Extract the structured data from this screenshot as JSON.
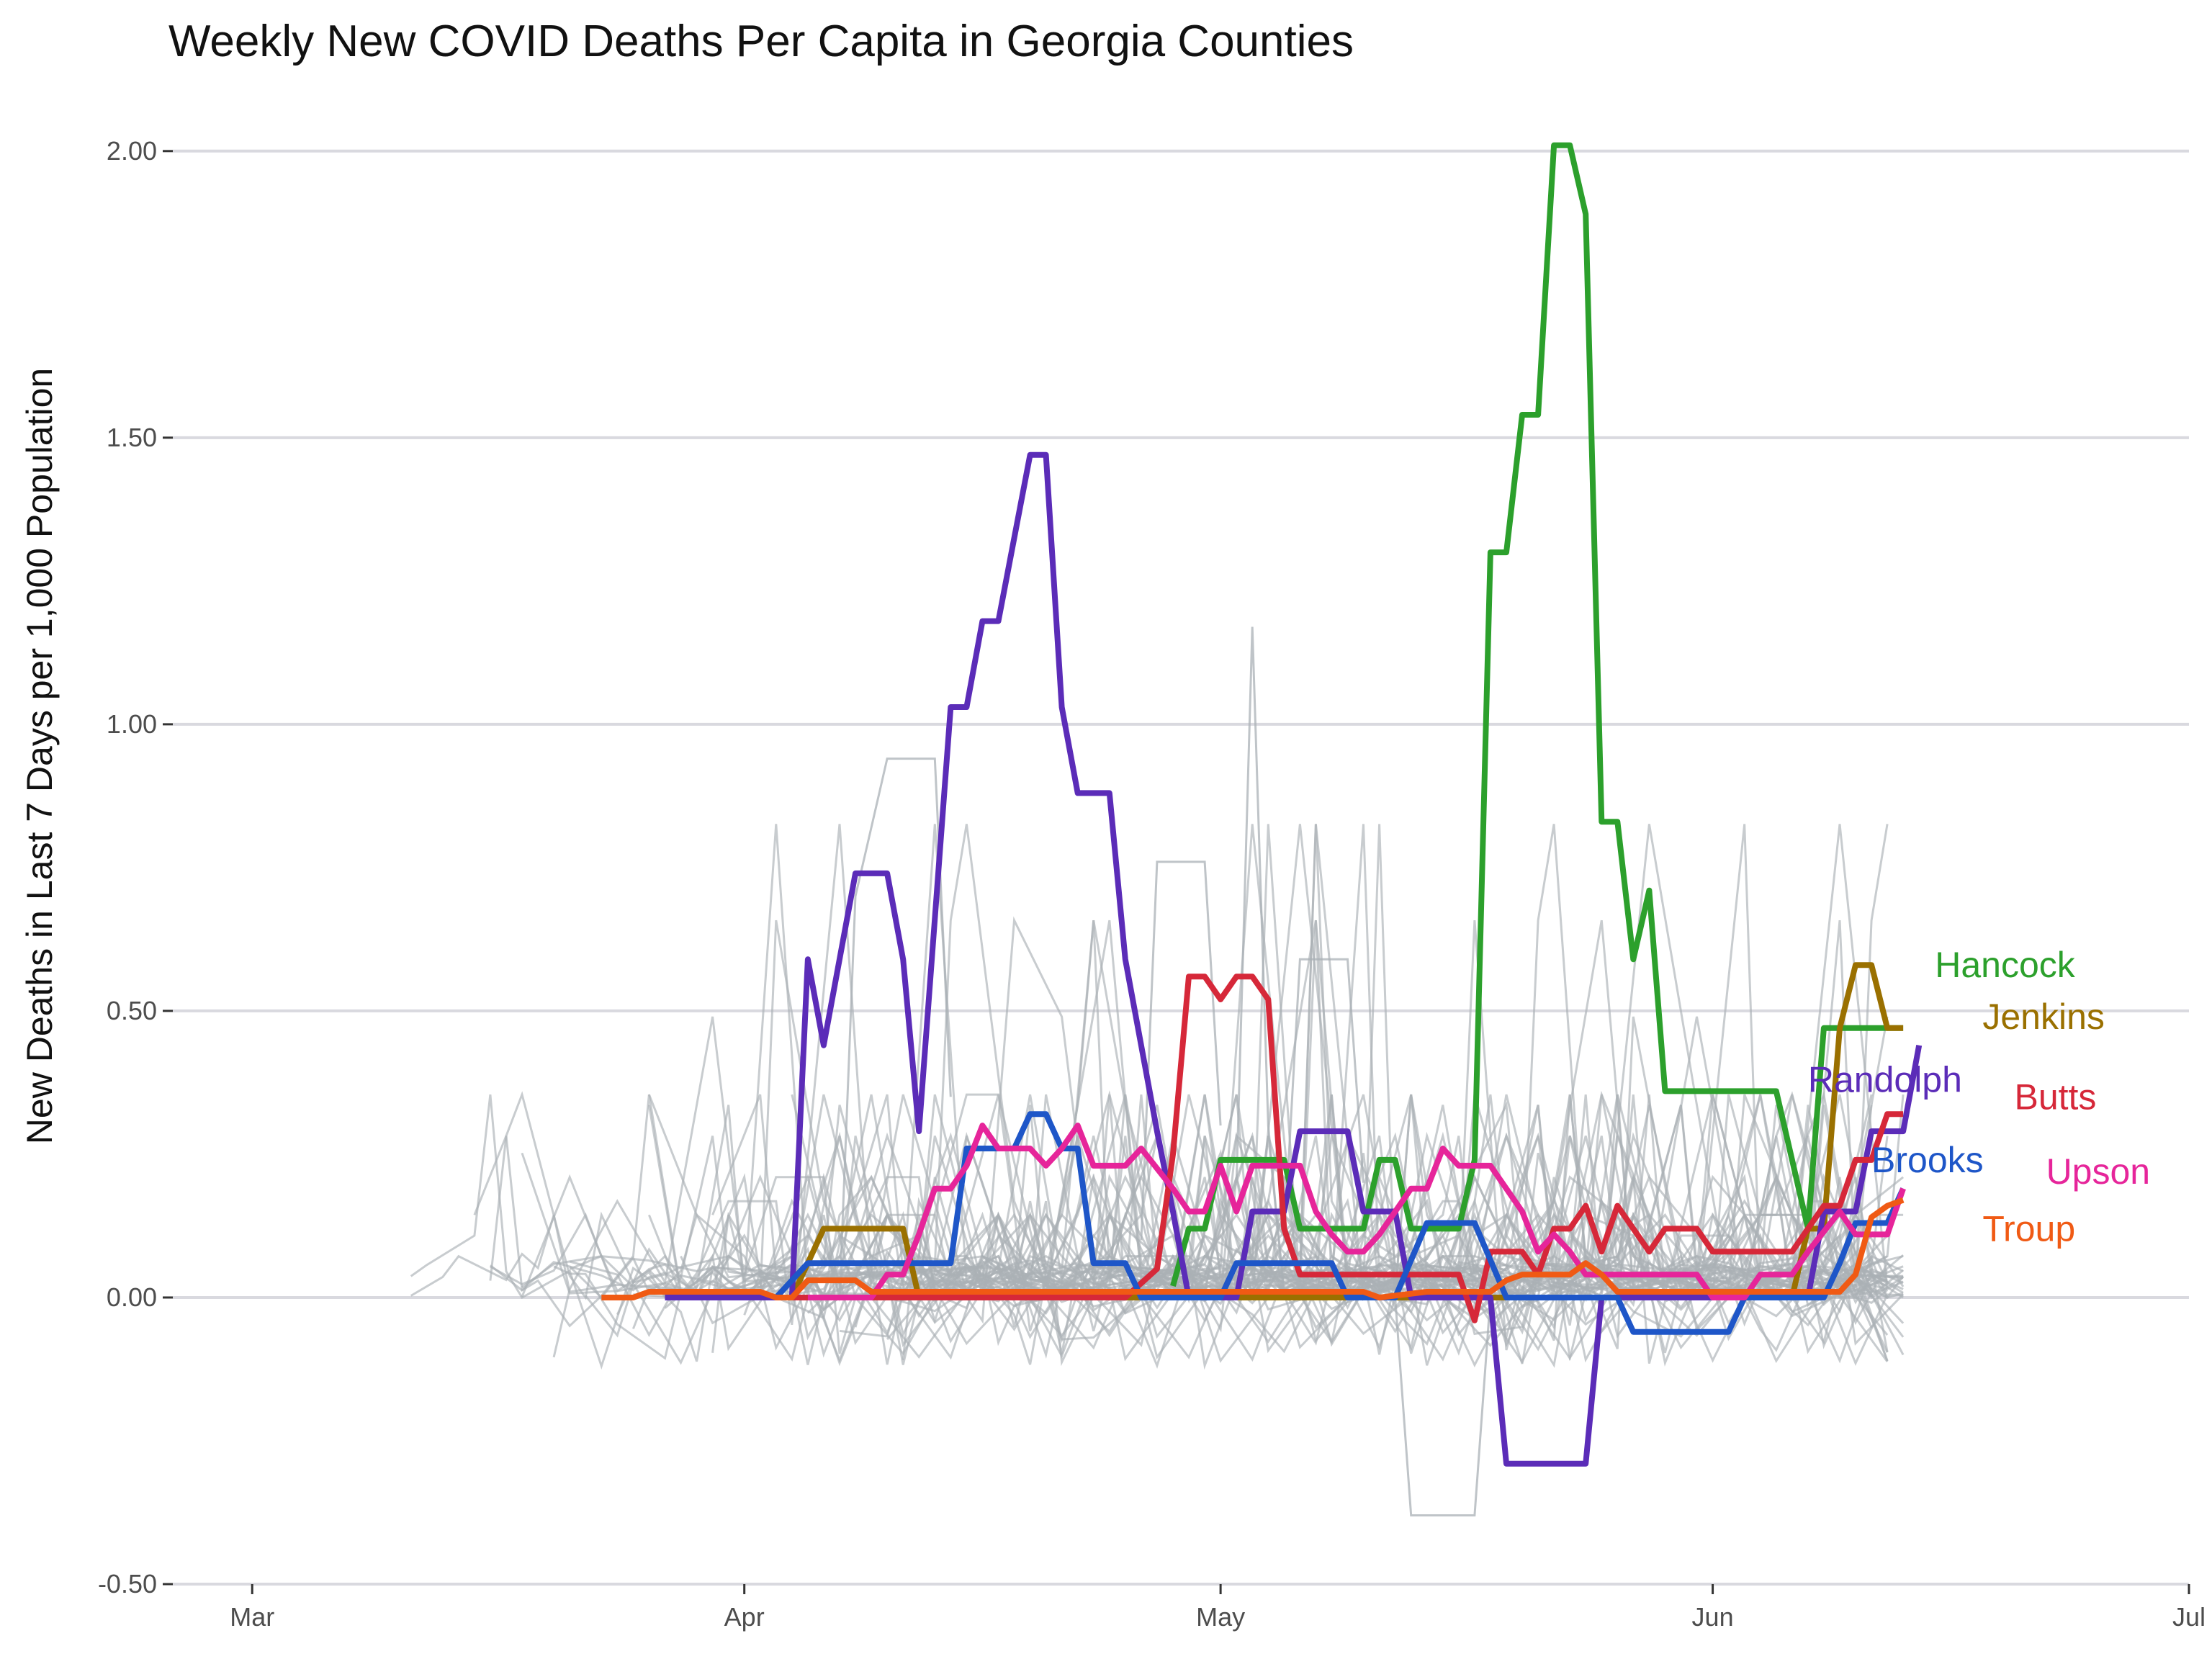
{
  "chart_data": {
    "type": "line",
    "title": "Weekly New COVID Deaths Per Capita in Georgia Counties",
    "xlabel": "",
    "ylabel": "New Deaths in Last 7 Days per 1,000 Population",
    "x_ticks": [
      "Mar",
      "Apr",
      "May",
      "Jun",
      "Jul"
    ],
    "x_tick_dates": [
      "2020-03-01",
      "2020-04-01",
      "2020-05-01",
      "2020-06-01",
      "2020-07-01"
    ],
    "xlim": [
      "2020-02-25",
      "2020-07-01"
    ],
    "y_ticks": [
      "-0.50",
      "0.00",
      "0.50",
      "1.00",
      "1.50",
      "2.00"
    ],
    "y_tick_values": [
      -0.5,
      0,
      0.5,
      1,
      1.5,
      2
    ],
    "ylim": [
      -0.5,
      2.05
    ],
    "grid": "horizontal",
    "legend": "direct labels at line ends",
    "series": [
      {
        "name": "Hancock",
        "color": "#2ca02c",
        "label_anchor": [
          "2020-06-15",
          0.58
        ],
        "points": [
          [
            "2020-04-28",
            0.02
          ],
          [
            "2020-04-29",
            0.12
          ],
          [
            "2020-04-30",
            0.12
          ],
          [
            "2020-05-01",
            0.24
          ],
          [
            "2020-05-05",
            0.24
          ],
          [
            "2020-05-06",
            0.12
          ],
          [
            "2020-05-10",
            0.12
          ],
          [
            "2020-05-11",
            0.24
          ],
          [
            "2020-05-12",
            0.24
          ],
          [
            "2020-05-13",
            0.12
          ],
          [
            "2020-05-16",
            0.12
          ],
          [
            "2020-05-17",
            0.24
          ],
          [
            "2020-05-18",
            1.3
          ],
          [
            "2020-05-19",
            1.3
          ],
          [
            "2020-05-20",
            1.54
          ],
          [
            "2020-05-21",
            1.54
          ],
          [
            "2020-05-22",
            2.01
          ],
          [
            "2020-05-23",
            2.01
          ],
          [
            "2020-05-24",
            1.89
          ],
          [
            "2020-05-25",
            0.83
          ],
          [
            "2020-05-26",
            0.83
          ],
          [
            "2020-05-27",
            0.59
          ],
          [
            "2020-05-28",
            0.71
          ],
          [
            "2020-05-29",
            0.36
          ],
          [
            "2020-06-05",
            0.36
          ],
          [
            "2020-06-07",
            0.12
          ],
          [
            "2020-06-08",
            0.47
          ],
          [
            "2020-06-13",
            0.47
          ]
        ]
      },
      {
        "name": "Jenkins",
        "color": "#9a7000",
        "label_anchor": [
          "2020-06-18",
          0.49
        ],
        "points": [
          [
            "2020-04-04",
            0.0
          ],
          [
            "2020-04-06",
            0.12
          ],
          [
            "2020-04-11",
            0.12
          ],
          [
            "2020-04-12",
            0.0
          ],
          [
            "2020-06-06",
            0.0
          ],
          [
            "2020-06-07",
            0.12
          ],
          [
            "2020-06-08",
            0.12
          ],
          [
            "2020-06-09",
            0.47
          ],
          [
            "2020-06-10",
            0.58
          ],
          [
            "2020-06-11",
            0.58
          ],
          [
            "2020-06-12",
            0.47
          ],
          [
            "2020-06-13",
            0.47
          ]
        ]
      },
      {
        "name": "Randolph",
        "color": "#5b2cb8",
        "label_anchor": [
          "2020-06-07",
          0.38
        ],
        "points": [
          [
            "2020-03-27",
            0.0
          ],
          [
            "2020-04-04",
            0.0
          ],
          [
            "2020-04-05",
            0.59
          ],
          [
            "2020-04-06",
            0.44
          ],
          [
            "2020-04-08",
            0.74
          ],
          [
            "2020-04-10",
            0.74
          ],
          [
            "2020-04-11",
            0.59
          ],
          [
            "2020-04-12",
            0.29
          ],
          [
            "2020-04-14",
            1.03
          ],
          [
            "2020-04-15",
            1.03
          ],
          [
            "2020-04-16",
            1.18
          ],
          [
            "2020-04-17",
            1.18
          ],
          [
            "2020-04-19",
            1.47
          ],
          [
            "2020-04-20",
            1.47
          ],
          [
            "2020-04-21",
            1.03
          ],
          [
            "2020-04-22",
            0.88
          ],
          [
            "2020-04-24",
            0.88
          ],
          [
            "2020-04-25",
            0.59
          ],
          [
            "2020-04-27",
            0.29
          ],
          [
            "2020-04-28",
            0.15
          ],
          [
            "2020-04-29",
            0.0
          ],
          [
            "2020-05-02",
            0.0
          ],
          [
            "2020-05-03",
            0.15
          ],
          [
            "2020-05-05",
            0.15
          ],
          [
            "2020-05-06",
            0.29
          ],
          [
            "2020-05-09",
            0.29
          ],
          [
            "2020-05-10",
            0.15
          ],
          [
            "2020-05-12",
            0.15
          ],
          [
            "2020-05-13",
            0.0
          ],
          [
            "2020-05-18",
            0.0
          ],
          [
            "2020-05-19",
            -0.29
          ],
          [
            "2020-05-24",
            -0.29
          ],
          [
            "2020-05-25",
            0.0
          ],
          [
            "2020-06-07",
            0.0
          ],
          [
            "2020-06-08",
            0.15
          ],
          [
            "2020-06-10",
            0.15
          ],
          [
            "2020-06-11",
            0.29
          ],
          [
            "2020-06-13",
            0.29
          ],
          [
            "2020-06-14",
            0.44
          ]
        ]
      },
      {
        "name": "Butts",
        "color": "#d62839",
        "label_anchor": [
          "2020-06-20",
          0.35
        ],
        "points": [
          [
            "2020-04-04",
            0.0
          ],
          [
            "2020-04-25",
            0.0
          ],
          [
            "2020-04-27",
            0.05
          ],
          [
            "2020-04-28",
            0.25
          ],
          [
            "2020-04-29",
            0.56
          ],
          [
            "2020-04-30",
            0.56
          ],
          [
            "2020-05-01",
            0.52
          ],
          [
            "2020-05-02",
            0.56
          ],
          [
            "2020-05-03",
            0.56
          ],
          [
            "2020-05-04",
            0.52
          ],
          [
            "2020-05-05",
            0.12
          ],
          [
            "2020-05-06",
            0.04
          ],
          [
            "2020-05-16",
            0.04
          ],
          [
            "2020-05-17",
            -0.04
          ],
          [
            "2020-05-18",
            0.08
          ],
          [
            "2020-05-20",
            0.08
          ],
          [
            "2020-05-21",
            0.04
          ],
          [
            "2020-05-22",
            0.12
          ],
          [
            "2020-05-23",
            0.12
          ],
          [
            "2020-05-24",
            0.16
          ],
          [
            "2020-05-25",
            0.08
          ],
          [
            "2020-05-26",
            0.16
          ],
          [
            "2020-05-27",
            0.12
          ],
          [
            "2020-05-28",
            0.08
          ],
          [
            "2020-05-29",
            0.12
          ],
          [
            "2020-05-31",
            0.12
          ],
          [
            "2020-06-01",
            0.08
          ],
          [
            "2020-06-06",
            0.08
          ],
          [
            "2020-06-07",
            0.12
          ],
          [
            "2020-06-08",
            0.16
          ],
          [
            "2020-06-09",
            0.16
          ],
          [
            "2020-06-10",
            0.24
          ],
          [
            "2020-06-11",
            0.24
          ],
          [
            "2020-06-12",
            0.32
          ],
          [
            "2020-06-13",
            0.32
          ]
        ]
      },
      {
        "name": "Brooks",
        "color": "#1e56c8",
        "label_anchor": [
          "2020-06-11",
          0.24
        ],
        "points": [
          [
            "2020-04-03",
            0.0
          ],
          [
            "2020-04-05",
            0.06
          ],
          [
            "2020-04-14",
            0.06
          ],
          [
            "2020-04-15",
            0.26
          ],
          [
            "2020-04-18",
            0.26
          ],
          [
            "2020-04-19",
            0.32
          ],
          [
            "2020-04-20",
            0.32
          ],
          [
            "2020-04-21",
            0.26
          ],
          [
            "2020-04-22",
            0.26
          ],
          [
            "2020-04-23",
            0.06
          ],
          [
            "2020-04-25",
            0.06
          ],
          [
            "2020-04-26",
            0.0
          ],
          [
            "2020-05-01",
            0.0
          ],
          [
            "2020-05-02",
            0.06
          ],
          [
            "2020-05-08",
            0.06
          ],
          [
            "2020-05-09",
            0.0
          ],
          [
            "2020-05-12",
            0.0
          ],
          [
            "2020-05-14",
            0.13
          ],
          [
            "2020-05-17",
            0.13
          ],
          [
            "2020-05-19",
            0.0
          ],
          [
            "2020-05-26",
            0.0
          ],
          [
            "2020-05-27",
            -0.06
          ],
          [
            "2020-06-02",
            -0.06
          ],
          [
            "2020-06-03",
            0.0
          ],
          [
            "2020-06-08",
            0.0
          ],
          [
            "2020-06-09",
            0.06
          ],
          [
            "2020-06-10",
            0.13
          ],
          [
            "2020-06-12",
            0.13
          ],
          [
            "2020-06-13",
            0.19
          ]
        ]
      },
      {
        "name": "Upson",
        "color": "#e6259a",
        "label_anchor": [
          "2020-06-22",
          0.22
        ],
        "points": [
          [
            "2020-04-05",
            0.0
          ],
          [
            "2020-04-09",
            0.0
          ],
          [
            "2020-04-10",
            0.04
          ],
          [
            "2020-04-11",
            0.04
          ],
          [
            "2020-04-12",
            0.11
          ],
          [
            "2020-04-13",
            0.19
          ],
          [
            "2020-04-14",
            0.19
          ],
          [
            "2020-04-15",
            0.23
          ],
          [
            "2020-04-16",
            0.3
          ],
          [
            "2020-04-17",
            0.26
          ],
          [
            "2020-04-19",
            0.26
          ],
          [
            "2020-04-20",
            0.23
          ],
          [
            "2020-04-21",
            0.26
          ],
          [
            "2020-04-22",
            0.3
          ],
          [
            "2020-04-23",
            0.23
          ],
          [
            "2020-04-25",
            0.23
          ],
          [
            "2020-04-26",
            0.26
          ],
          [
            "2020-04-28",
            0.19
          ],
          [
            "2020-04-29",
            0.15
          ],
          [
            "2020-04-30",
            0.15
          ],
          [
            "2020-05-01",
            0.23
          ],
          [
            "2020-05-02",
            0.15
          ],
          [
            "2020-05-03",
            0.23
          ],
          [
            "2020-05-06",
            0.23
          ],
          [
            "2020-05-07",
            0.15
          ],
          [
            "2020-05-08",
            0.11
          ],
          [
            "2020-05-09",
            0.08
          ],
          [
            "2020-05-10",
            0.08
          ],
          [
            "2020-05-11",
            0.11
          ],
          [
            "2020-05-13",
            0.19
          ],
          [
            "2020-05-14",
            0.19
          ],
          [
            "2020-05-15",
            0.26
          ],
          [
            "2020-05-16",
            0.23
          ],
          [
            "2020-05-18",
            0.23
          ],
          [
            "2020-05-20",
            0.15
          ],
          [
            "2020-05-21",
            0.08
          ],
          [
            "2020-05-22",
            0.11
          ],
          [
            "2020-05-23",
            0.08
          ],
          [
            "2020-05-24",
            0.04
          ],
          [
            "2020-05-25",
            0.04
          ],
          [
            "2020-05-31",
            0.04
          ],
          [
            "2020-06-01",
            0.0
          ],
          [
            "2020-06-03",
            0.0
          ],
          [
            "2020-06-04",
            0.04
          ],
          [
            "2020-06-06",
            0.04
          ],
          [
            "2020-06-07",
            0.08
          ],
          [
            "2020-06-09",
            0.15
          ],
          [
            "2020-06-10",
            0.11
          ],
          [
            "2020-06-12",
            0.11
          ],
          [
            "2020-06-13",
            0.19
          ]
        ]
      },
      {
        "name": "Troup",
        "color": "#f05a14",
        "label_anchor": [
          "2020-06-18",
          0.12
        ],
        "points": [
          [
            "2020-03-23",
            0.0
          ],
          [
            "2020-03-25",
            0.0
          ],
          [
            "2020-03-26",
            0.01
          ],
          [
            "2020-04-02",
            0.01
          ],
          [
            "2020-04-03",
            0.0
          ],
          [
            "2020-04-04",
            0.0
          ],
          [
            "2020-04-05",
            0.03
          ],
          [
            "2020-04-08",
            0.03
          ],
          [
            "2020-04-09",
            0.01
          ],
          [
            "2020-05-10",
            0.01
          ],
          [
            "2020-05-11",
            0.0
          ],
          [
            "2020-05-14",
            0.01
          ],
          [
            "2020-05-18",
            0.01
          ],
          [
            "2020-05-19",
            0.03
          ],
          [
            "2020-05-20",
            0.04
          ],
          [
            "2020-05-23",
            0.04
          ],
          [
            "2020-05-24",
            0.06
          ],
          [
            "2020-05-25",
            0.04
          ],
          [
            "2020-05-26",
            0.01
          ],
          [
            "2020-06-08",
            0.01
          ],
          [
            "2020-06-09",
            0.01
          ],
          [
            "2020-06-10",
            0.04
          ],
          [
            "2020-06-11",
            0.14
          ],
          [
            "2020-06-12",
            0.16
          ],
          [
            "2020-06-13",
            0.17
          ]
        ]
      }
    ]
  }
}
